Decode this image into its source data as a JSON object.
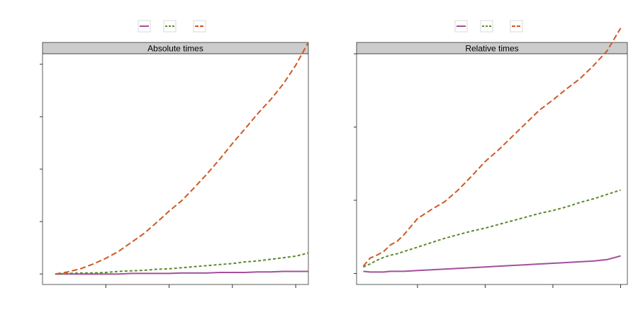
{
  "chart_data": [
    {
      "type": "line",
      "title": "Absolute times",
      "xlabel": "",
      "ylabel": "",
      "x": [
        1,
        2,
        3,
        4,
        5,
        6,
        7,
        8,
        9,
        10,
        11,
        12,
        13,
        14,
        15,
        16,
        17,
        18,
        19,
        20,
        21
      ],
      "xlim": [
        0,
        21
      ],
      "ylim": [
        -0.2,
        4.2
      ],
      "legend_position": "top",
      "series": [
        {
          "color": "#a3509c",
          "dash": "solid",
          "values": [
            0.0,
            0.0,
            0.0,
            0.0,
            0.0,
            0.0,
            0.01,
            0.01,
            0.01,
            0.01,
            0.02,
            0.02,
            0.02,
            0.03,
            0.03,
            0.03,
            0.04,
            0.04,
            0.05,
            0.05,
            0.05
          ]
        },
        {
          "color": "#5b8a2d",
          "dash": "dotted",
          "values": [
            0.0,
            0.01,
            0.02,
            0.02,
            0.03,
            0.05,
            0.06,
            0.07,
            0.09,
            0.1,
            0.12,
            0.14,
            0.16,
            0.18,
            0.2,
            0.23,
            0.25,
            0.28,
            0.31,
            0.34,
            0.4
          ]
        },
        {
          "color": "#cc5a25",
          "dash": "dashed",
          "values": [
            0.0,
            0.04,
            0.1,
            0.19,
            0.3,
            0.43,
            0.6,
            0.77,
            0.98,
            1.2,
            1.4,
            1.65,
            1.91,
            2.19,
            2.49,
            2.77,
            3.06,
            3.32,
            3.62,
            3.98,
            4.42
          ]
        }
      ]
    },
    {
      "type": "line",
      "title": "Relative times",
      "xlabel": "",
      "ylabel": "",
      "x": [
        1,
        1.5,
        2,
        2.5,
        3,
        3.5,
        4,
        5,
        6,
        7,
        8,
        9,
        10,
        11,
        12,
        13,
        14,
        15,
        16,
        17,
        18,
        19,
        20
      ],
      "xlim": [
        0.5,
        20.5
      ],
      "ylim": [
        -0.15,
        3.0
      ],
      "legend_position": "top",
      "series": [
        {
          "color": "#a3509c",
          "dash": "solid",
          "values": [
            0.03,
            0.02,
            0.02,
            0.02,
            0.03,
            0.03,
            0.03,
            0.04,
            0.05,
            0.06,
            0.07,
            0.08,
            0.09,
            0.1,
            0.11,
            0.12,
            0.13,
            0.14,
            0.15,
            0.16,
            0.17,
            0.19,
            0.24
          ]
        },
        {
          "color": "#5b8a2d",
          "dash": "dotted",
          "values": [
            0.09,
            0.13,
            0.18,
            0.22,
            0.25,
            0.27,
            0.3,
            0.36,
            0.42,
            0.48,
            0.53,
            0.58,
            0.62,
            0.67,
            0.72,
            0.77,
            0.82,
            0.86,
            0.91,
            0.97,
            1.02,
            1.08,
            1.14
          ]
        },
        {
          "color": "#cc5a25",
          "dash": "dashed",
          "values": [
            0.1,
            0.21,
            0.25,
            0.3,
            0.39,
            0.44,
            0.53,
            0.75,
            0.87,
            0.98,
            1.14,
            1.33,
            1.53,
            1.69,
            1.87,
            2.05,
            2.23,
            2.37,
            2.52,
            2.66,
            2.84,
            3.04,
            3.35
          ]
        }
      ]
    }
  ]
}
